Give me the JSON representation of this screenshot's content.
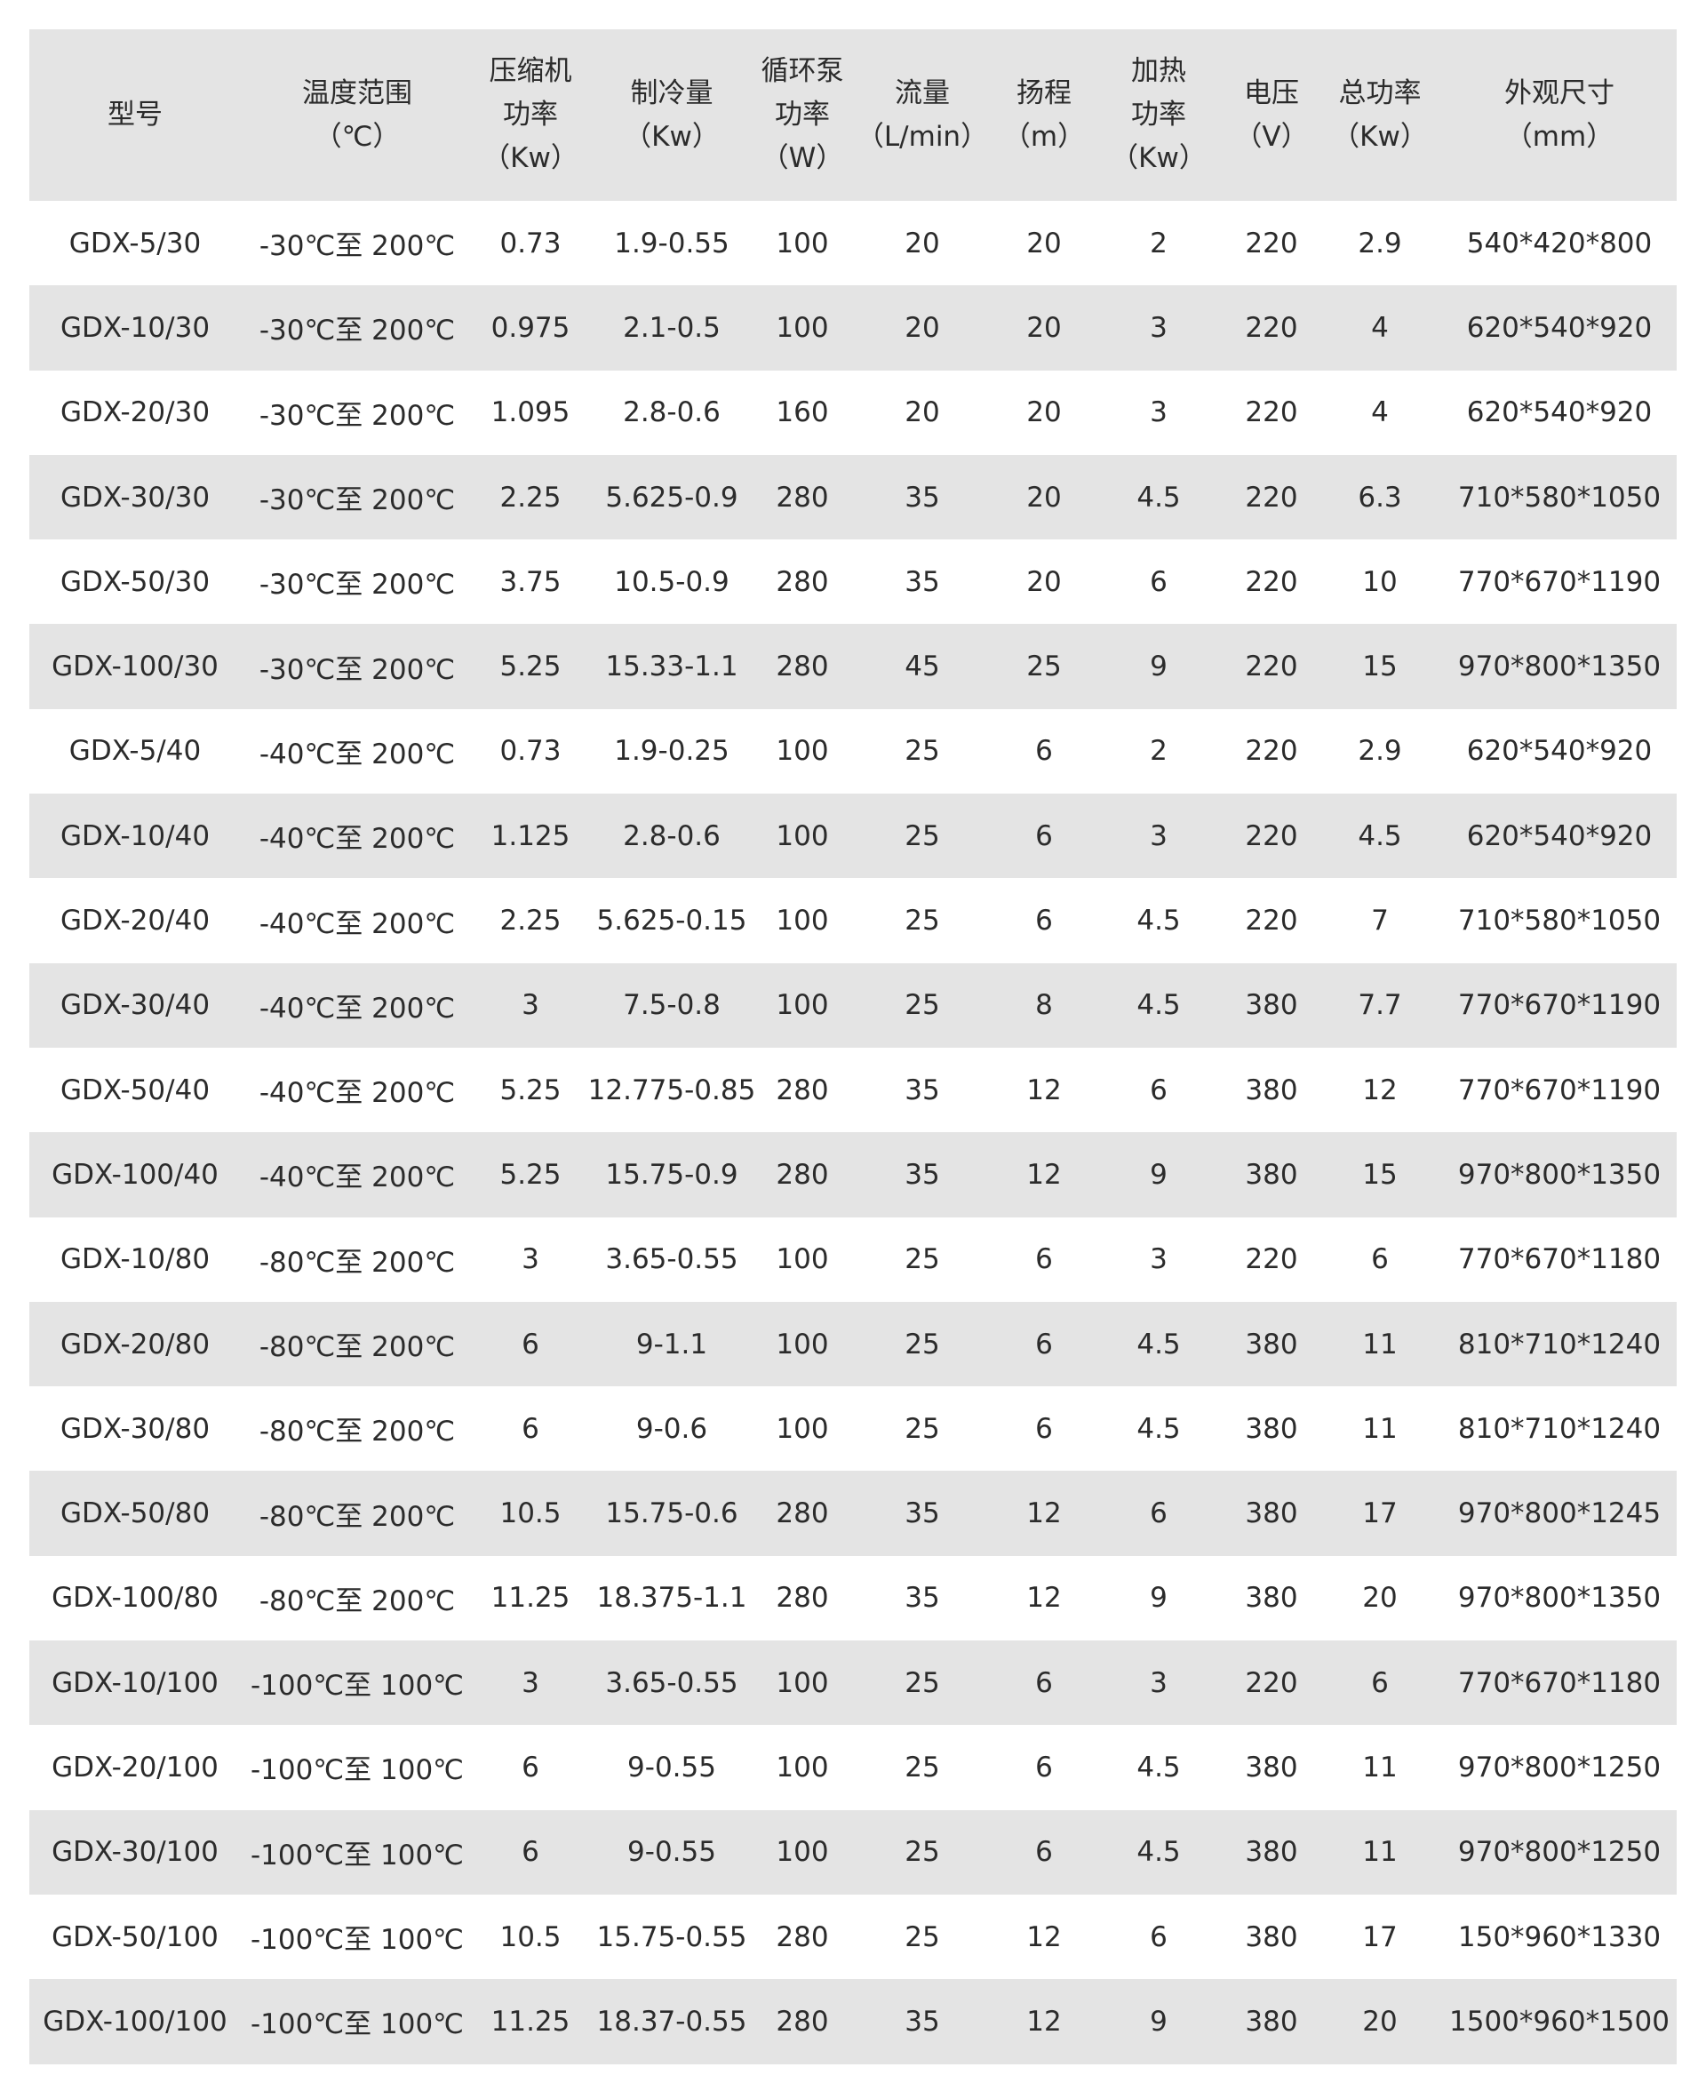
{
  "headers": [
    [
      "型号"
    ],
    [
      "温度范围",
      "（℃）"
    ],
    [
      "压缩机",
      "功率",
      "（Kw）"
    ],
    [
      "制冷量",
      "（Kw）"
    ],
    [
      "循环泵",
      "功率",
      "（W）"
    ],
    [
      "流量",
      "（L/min）"
    ],
    [
      "扬程",
      "（m）"
    ],
    [
      "加热",
      "功率",
      "（Kw）"
    ],
    [
      "电压",
      "（V）"
    ],
    [
      "总功率",
      "（Kw）"
    ],
    [
      "外观尺寸",
      "（mm）"
    ]
  ],
  "rows": [
    [
      "GDX-5/30",
      "-30℃至 200℃",
      "0.73",
      "1.9-0.55",
      "100",
      "20",
      "20",
      "2",
      "220",
      "2.9",
      "540*420*800"
    ],
    [
      "GDX-10/30",
      "-30℃至 200℃",
      "0.975",
      "2.1-0.5",
      "100",
      "20",
      "20",
      "3",
      "220",
      "4",
      "620*540*920"
    ],
    [
      "GDX-20/30",
      "-30℃至 200℃",
      "1.095",
      "2.8-0.6",
      "160",
      "20",
      "20",
      "3",
      "220",
      "4",
      "620*540*920"
    ],
    [
      "GDX-30/30",
      "-30℃至 200℃",
      "2.25",
      "5.625-0.9",
      "280",
      "35",
      "20",
      "4.5",
      "220",
      "6.3",
      "710*580*1050"
    ],
    [
      "GDX-50/30",
      "-30℃至 200℃",
      "3.75",
      "10.5-0.9",
      "280",
      "35",
      "20",
      "6",
      "220",
      "10",
      "770*670*1190"
    ],
    [
      "GDX-100/30",
      "-30℃至 200℃",
      "5.25",
      "15.33-1.1",
      "280",
      "45",
      "25",
      "9",
      "220",
      "15",
      "970*800*1350"
    ],
    [
      "GDX-5/40",
      "-40℃至 200℃",
      "0.73",
      "1.9-0.25",
      "100",
      "25",
      "6",
      "2",
      "220",
      "2.9",
      "620*540*920"
    ],
    [
      "GDX-10/40",
      "-40℃至 200℃",
      "1.125",
      "2.8-0.6",
      "100",
      "25",
      "6",
      "3",
      "220",
      "4.5",
      "620*540*920"
    ],
    [
      "GDX-20/40",
      "-40℃至 200℃",
      "2.25",
      "5.625-0.15",
      "100",
      "25",
      "6",
      "4.5",
      "220",
      "7",
      "710*580*1050"
    ],
    [
      "GDX-30/40",
      "-40℃至 200℃",
      "3",
      "7.5-0.8",
      "100",
      "25",
      "8",
      "4.5",
      "380",
      "7.7",
      "770*670*1190"
    ],
    [
      "GDX-50/40",
      "-40℃至 200℃",
      "5.25",
      "12.775-0.85",
      "280",
      "35",
      "12",
      "6",
      "380",
      "12",
      "770*670*1190"
    ],
    [
      "GDX-100/40",
      "-40℃至 200℃",
      "5.25",
      "15.75-0.9",
      "280",
      "35",
      "12",
      "9",
      "380",
      "15",
      "970*800*1350"
    ],
    [
      "GDX-10/80",
      "-80℃至 200℃",
      "3",
      "3.65-0.55",
      "100",
      "25",
      "6",
      "3",
      "220",
      "6",
      "770*670*1180"
    ],
    [
      "GDX-20/80",
      "-80℃至 200℃",
      "6",
      "9-1.1",
      "100",
      "25",
      "6",
      "4.5",
      "380",
      "11",
      "810*710*1240"
    ],
    [
      "GDX-30/80",
      "-80℃至 200℃",
      "6",
      "9-0.6",
      "100",
      "25",
      "6",
      "4.5",
      "380",
      "11",
      "810*710*1240"
    ],
    [
      "GDX-50/80",
      "-80℃至 200℃",
      "10.5",
      "15.75-0.6",
      "280",
      "35",
      "12",
      "6",
      "380",
      "17",
      "970*800*1245"
    ],
    [
      "GDX-100/80",
      "-80℃至 200℃",
      "11.25",
      "18.375-1.1",
      "280",
      "35",
      "12",
      "9",
      "380",
      "20",
      "970*800*1350"
    ],
    [
      "GDX-10/100",
      "-100℃至 100℃",
      "3",
      "3.65-0.55",
      "100",
      "25",
      "6",
      "3",
      "220",
      "6",
      "770*670*1180"
    ],
    [
      "GDX-20/100",
      "-100℃至 100℃",
      "6",
      "9-0.55",
      "100",
      "25",
      "6",
      "4.5",
      "380",
      "11",
      "970*800*1250"
    ],
    [
      "GDX-30/100",
      "-100℃至 100℃",
      "6",
      "9-0.55",
      "100",
      "25",
      "6",
      "4.5",
      "380",
      "11",
      "970*800*1250"
    ],
    [
      "GDX-50/100",
      "-100℃至 100℃",
      "10.5",
      "15.75-0.55",
      "280",
      "25",
      "12",
      "6",
      "380",
      "17",
      "150*960*1330"
    ],
    [
      "GDX-100/100",
      "-100℃至 100℃",
      "11.25",
      "18.37-0.55",
      "280",
      "35",
      "12",
      "9",
      "380",
      "20",
      "1500*960*1500"
    ]
  ]
}
